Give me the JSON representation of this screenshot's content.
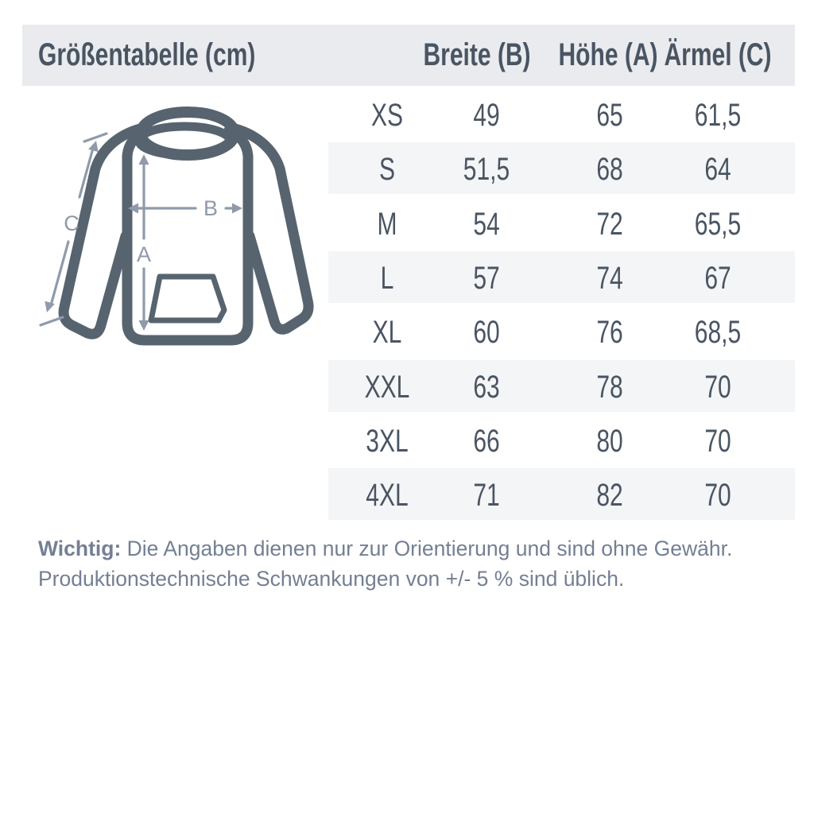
{
  "header": {
    "title": "Größentabelle (cm)",
    "columns": [
      "Breite (B)",
      "Höhe (A)",
      "Ärmel (C)"
    ]
  },
  "diagram": {
    "label_a": "A",
    "label_b": "B",
    "label_c": "C"
  },
  "table": {
    "rows": [
      [
        "XS",
        "49",
        "65",
        "61,5"
      ],
      [
        "S",
        "51,5",
        "68",
        "64"
      ],
      [
        "M",
        "54",
        "72",
        "65,5"
      ],
      [
        "L",
        "57",
        "74",
        "67"
      ],
      [
        "XL",
        "60",
        "76",
        "68,5"
      ],
      [
        "XXL",
        "63",
        "78",
        "70"
      ],
      [
        "3XL",
        "66",
        "80",
        "70"
      ],
      [
        "4XL",
        "71",
        "82",
        "70"
      ]
    ]
  },
  "footnote": {
    "lead": "Wichtig:",
    "line1": "Die Angaben dienen nur zur Orientierung und sind ohne Gewähr.",
    "line2": "Produktionstechnische Schwankungen von +/- 5 % sind üblich."
  },
  "colors": {
    "header_bg": "#eaebee",
    "stripe_bg": "#f4f5f7",
    "text_dark": "#4a5563",
    "footnote_color": "#747f93",
    "hoodie_color": "#57646f",
    "arrow_color": "#8f9aaa"
  }
}
